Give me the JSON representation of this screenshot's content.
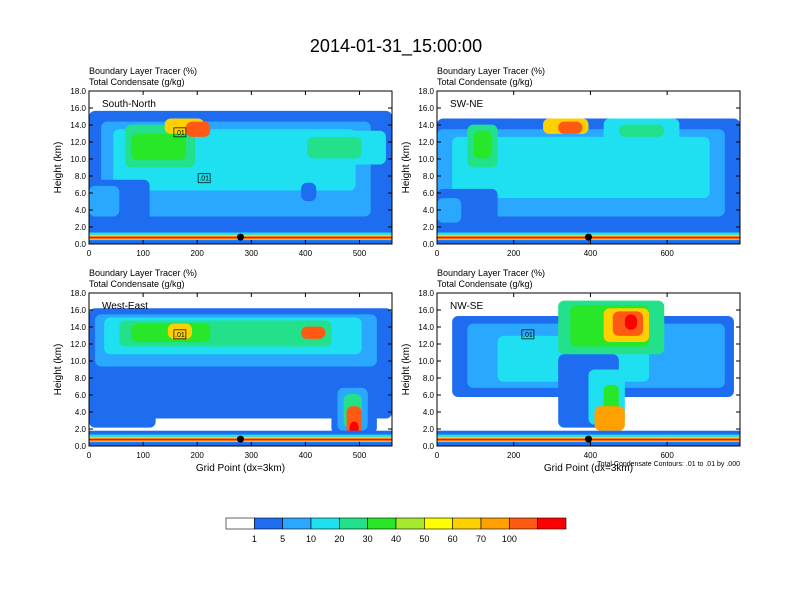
{
  "main_title": "2014-01-31_15:00:00",
  "colors": {
    "levels": [
      "#ffffff",
      "#1e6cf0",
      "#2aa8ff",
      "#1fe0f0",
      "#23e08a",
      "#28e628",
      "#a6ea2e",
      "#ffff00",
      "#ffd000",
      "#ffa000",
      "#ff5a14",
      "#ff0000"
    ],
    "contour": "#000000",
    "marker": "#000000"
  },
  "colorbar": {
    "labels": [
      "1",
      "5",
      "10",
      "20",
      "30",
      "40",
      "50",
      "60",
      "70",
      "100"
    ]
  },
  "chart_data": [
    {
      "type": "heatmap",
      "title_lines": [
        "Boundary Layer Tracer    (%)",
        "Total Condensate    (g/kg)"
      ],
      "panel_label": "South-North",
      "ylabel": "Height (km)",
      "xlabel": "",
      "xlim": [
        0,
        560
      ],
      "ylim": [
        0,
        18
      ],
      "xticks": [
        0,
        100,
        200,
        300,
        400,
        500
      ],
      "yticks": [
        "0.0",
        "2.0",
        "4.0",
        "6.0",
        "8.0",
        "10.0",
        "12.0",
        "14.0",
        "16.0",
        "18.0"
      ],
      "contour_labels": [
        ".01",
        ".01"
      ],
      "marker_x": 280
    },
    {
      "type": "heatmap",
      "title_lines": [
        "Boundary Layer Tracer    (%)",
        "Total Condensate    (g/kg)"
      ],
      "panel_label": "SW-NE",
      "ylabel": "Height (km)",
      "xlabel": "",
      "xlim": [
        0,
        790
      ],
      "ylim": [
        0,
        18
      ],
      "xticks": [
        0,
        200,
        400,
        600
      ],
      "yticks": [
        "0.0",
        "2.0",
        "4.0",
        "6.0",
        "8.0",
        "10.0",
        "12.0",
        "14.0",
        "16.0",
        "18.0"
      ],
      "contour_labels": [],
      "marker_x": 395
    },
    {
      "type": "heatmap",
      "title_lines": [
        "Boundary Layer Tracer    (%)",
        "Total Condensate    (g/kg)"
      ],
      "panel_label": "West-East",
      "ylabel": "Height (km)",
      "xlabel": "Grid Point (dx=3km)",
      "xlim": [
        0,
        560
      ],
      "ylim": [
        0,
        18
      ],
      "xticks": [
        0,
        100,
        200,
        300,
        400,
        500
      ],
      "yticks": [
        "0.0",
        "2.0",
        "4.0",
        "6.0",
        "8.0",
        "10.0",
        "12.0",
        "14.0",
        "16.0",
        "18.0"
      ],
      "contour_labels": [
        ".01"
      ],
      "marker_x": 280
    },
    {
      "type": "heatmap",
      "title_lines": [
        "Boundary Layer Tracer    (%)",
        "Total Condensate    (g/kg)"
      ],
      "panel_label": "NW-SE",
      "ylabel": "Height (km)",
      "xlabel": "Grid Point (dx=3km)",
      "xlim": [
        0,
        790
      ],
      "ylim": [
        0,
        18
      ],
      "xticks": [
        0,
        200,
        400,
        600
      ],
      "yticks": [
        "0.0",
        "2.0",
        "4.0",
        "6.0",
        "8.0",
        "10.0",
        "12.0",
        "14.0",
        "16.0",
        "18.0"
      ],
      "contour_labels": [
        ".01"
      ],
      "marker_x": 395,
      "footnote": "Total Condensate Contours: .01 to .01 by .000"
    }
  ]
}
